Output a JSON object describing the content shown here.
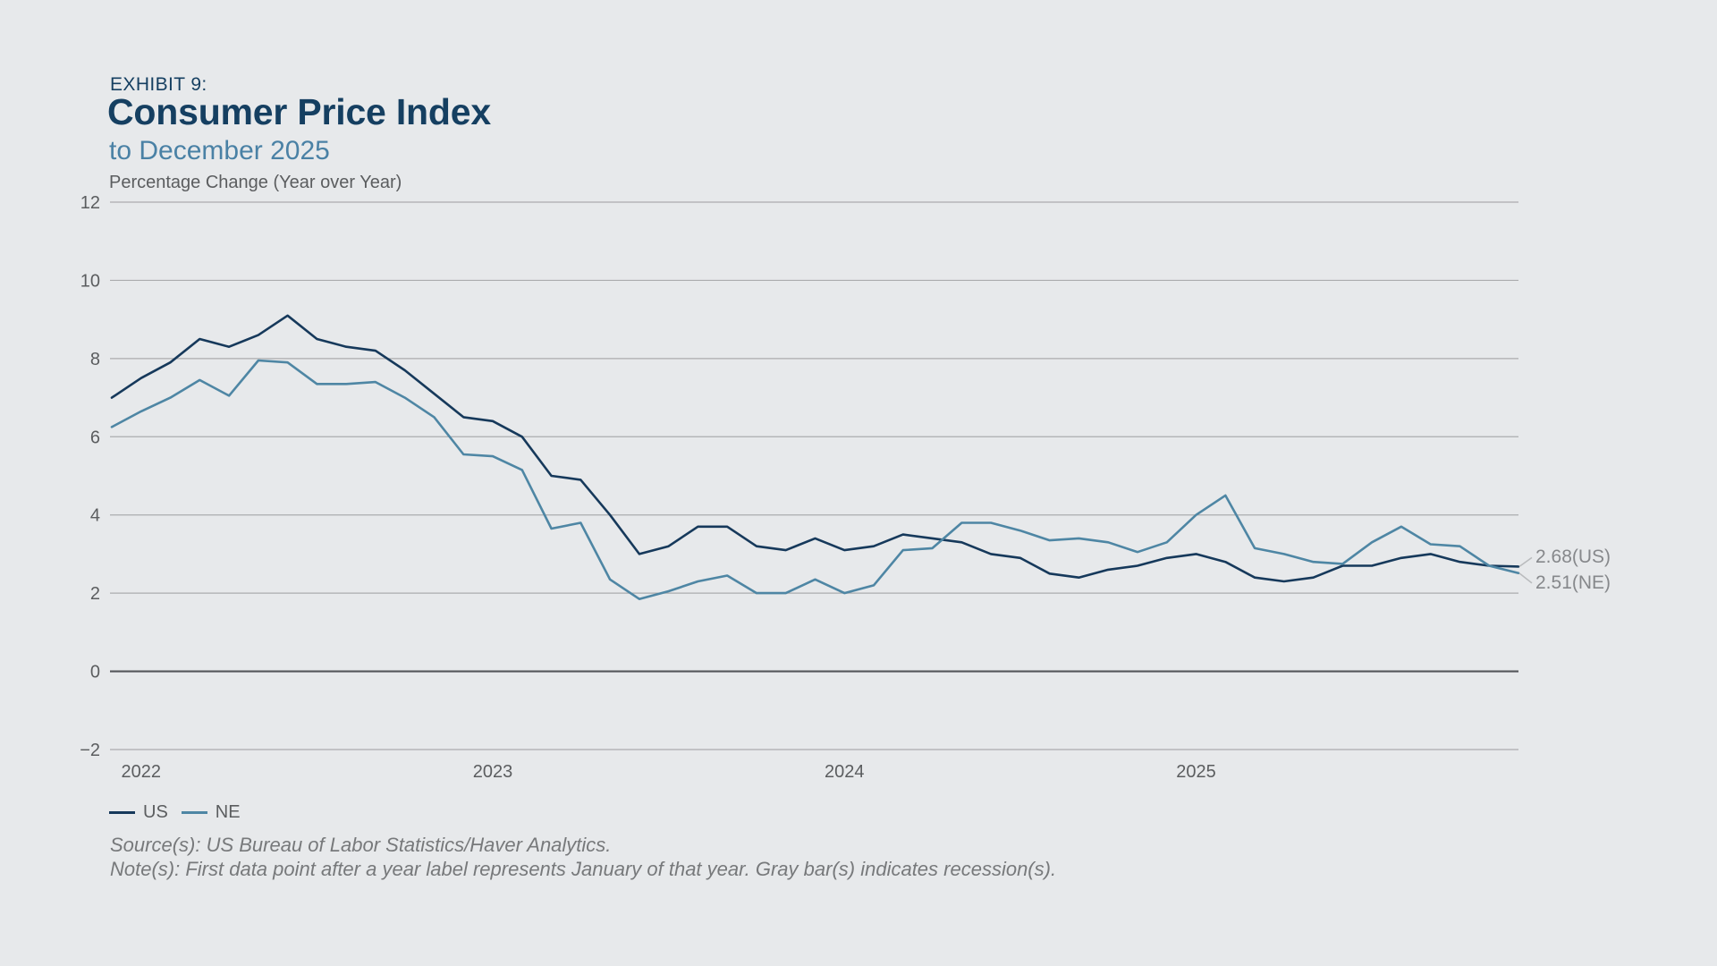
{
  "header": {
    "exhibit": "EXHIBIT 9:",
    "title": "Consumer Price Index",
    "subtitle": "to December 2025",
    "unit_label": "Percentage Change (Year over Year)"
  },
  "colors": {
    "background": "#e7e9eb",
    "us_line": "#16395b",
    "ne_line": "#4e86a4",
    "gridline": "#abacae",
    "zero_line": "#54565a",
    "axis_text": "#5b5d5f",
    "title_navy": "#153f61",
    "subtitle_blue": "#4a81a5",
    "footer_text": "#77797b",
    "annotation_text": "#86888b",
    "leader_line": "#b9bbbd"
  },
  "chart_data": {
    "type": "line",
    "frequency": "monthly",
    "x_start": "2021-12",
    "x_end": "2025-12",
    "ylim": [
      -2,
      12
    ],
    "grid": true,
    "legend_position": "bottom-left",
    "yticks": [
      {
        "value": 12,
        "label": "12"
      },
      {
        "value": 10,
        "label": "10"
      },
      {
        "value": 8,
        "label": "8"
      },
      {
        "value": 6,
        "label": "6"
      },
      {
        "value": 4,
        "label": "4"
      },
      {
        "value": 2,
        "label": "2"
      },
      {
        "value": 0,
        "label": "0"
      },
      {
        "value": -2,
        "label": "−2"
      }
    ],
    "xticks": [
      {
        "index": 1,
        "label": "2022"
      },
      {
        "index": 13,
        "label": "2023"
      },
      {
        "index": 25,
        "label": "2024"
      },
      {
        "index": 37,
        "label": "2025"
      }
    ],
    "series": [
      {
        "name": "US",
        "color": "#16395b",
        "values": [
          7.0,
          7.5,
          7.9,
          8.5,
          8.3,
          8.6,
          9.1,
          8.5,
          8.3,
          8.2,
          7.7,
          7.1,
          6.5,
          6.4,
          6.0,
          5.0,
          4.9,
          4.0,
          3.0,
          3.2,
          3.7,
          3.7,
          3.2,
          3.1,
          3.4,
          3.1,
          3.2,
          3.5,
          3.4,
          3.3,
          3.0,
          2.9,
          2.5,
          2.4,
          2.6,
          2.7,
          2.9,
          3.0,
          2.8,
          2.4,
          2.3,
          2.4,
          2.7,
          2.7,
          2.9,
          3.0,
          2.8,
          2.7,
          2.68
        ]
      },
      {
        "name": "NE",
        "color": "#4e86a4",
        "values": [
          6.25,
          6.65,
          7.0,
          7.45,
          7.05,
          7.95,
          7.9,
          7.35,
          7.35,
          7.4,
          7.0,
          6.5,
          5.55,
          5.5,
          5.15,
          3.65,
          3.8,
          2.35,
          1.85,
          2.05,
          2.3,
          2.45,
          2.0,
          2.0,
          2.35,
          2.0,
          2.2,
          3.1,
          3.15,
          3.8,
          3.8,
          3.6,
          3.35,
          3.4,
          3.3,
          3.05,
          3.3,
          4.0,
          4.5,
          3.15,
          3.0,
          2.8,
          2.75,
          3.3,
          3.7,
          3.25,
          3.2,
          2.7,
          2.51
        ]
      }
    ],
    "end_labels": [
      {
        "series": "US",
        "text": "2.68(US)",
        "value": 2.68
      },
      {
        "series": "NE",
        "text": "2.51(NE)",
        "value": 2.51
      }
    ]
  },
  "legend": {
    "items": [
      {
        "label": "US"
      },
      {
        "label": "NE"
      }
    ]
  },
  "annotations": {
    "us_end": "2.68(US)",
    "ne_end": "2.51(NE)"
  },
  "footer": {
    "source": "Source(s): US Bureau of Labor Statistics/Haver Analytics.",
    "note": "Note(s): First data point after a year label represents January of that year. Gray bar(s) indicates recession(s)."
  }
}
